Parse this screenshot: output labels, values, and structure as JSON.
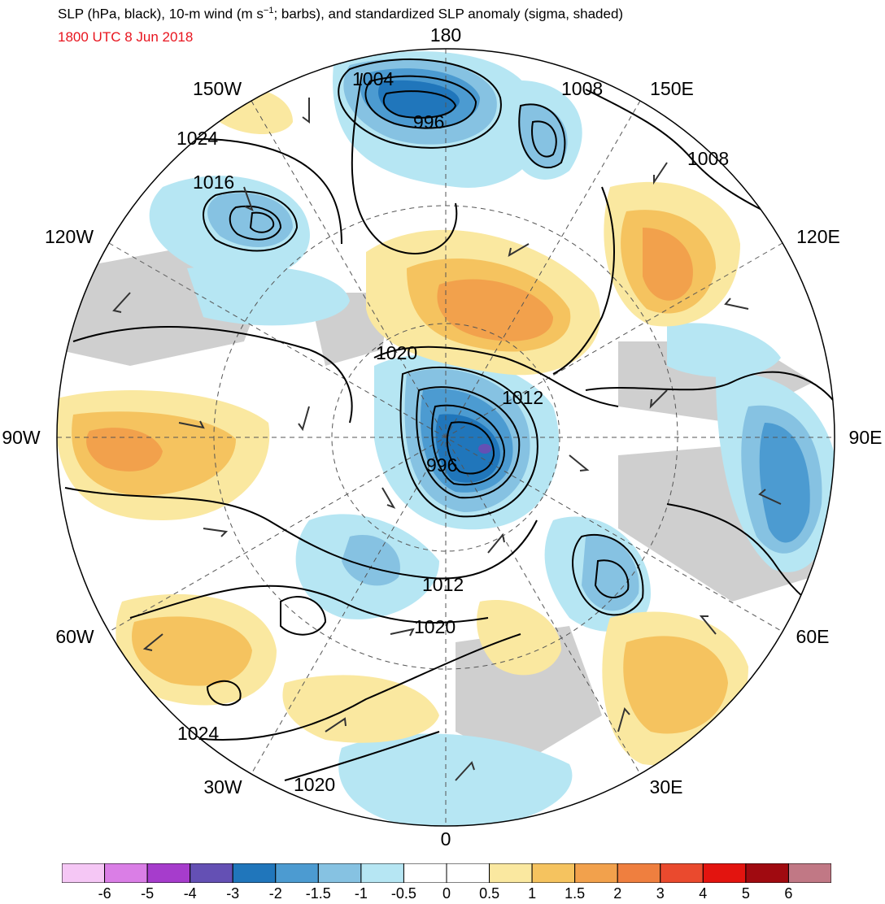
{
  "title": {
    "main": "SLP (hPa, black), 10-m wind (m s",
    "sup": "−1",
    "main_rest": "; barbs), and standardized SLP anomaly (sigma, shaded)",
    "time": "1800 UTC 8 Jun 2018"
  },
  "map": {
    "projection": "north-polar-stereographic",
    "longitude_labels": [
      {
        "text": "180",
        "lon": 180
      },
      {
        "text": "150E",
        "lon": 150
      },
      {
        "text": "120E",
        "lon": 120
      },
      {
        "text": "90E",
        "lon": 90
      },
      {
        "text": "60E",
        "lon": 60
      },
      {
        "text": "30E",
        "lon": 30
      },
      {
        "text": "0",
        "lon": 0
      },
      {
        "text": "30W",
        "lon": -30
      },
      {
        "text": "60W",
        "lon": -60
      },
      {
        "text": "90W",
        "lon": -90
      },
      {
        "text": "120W",
        "lon": -120
      },
      {
        "text": "150W",
        "lon": -150
      }
    ],
    "contour_labels": [
      "1004",
      "1008",
      "996",
      "1024",
      "1016",
      "1008",
      "1020",
      "1012",
      "996",
      "1012",
      "1020",
      "1024",
      "1020"
    ],
    "features": [
      {
        "name": "low",
        "label": "996",
        "anomaly": -3
      },
      {
        "name": "low",
        "label": "996",
        "anomaly": -3
      },
      {
        "name": "high",
        "anomaly": 1.5
      }
    ]
  },
  "colorbar": {
    "labels": [
      "-6",
      "-5",
      "-4",
      "-3",
      "-2",
      "-1.5",
      "-1",
      "-0.5",
      "0",
      "0.5",
      "1",
      "1.5",
      "2",
      "3",
      "4",
      "5",
      "6"
    ],
    "colors": [
      "#f5c7f5",
      "#da7ee6",
      "#a63ccc",
      "#6450b4",
      "#2076bb",
      "#4c9bd1",
      "#86c2e2",
      "#b6e6f3",
      "#ffffff",
      "#ffffff",
      "#fae8a0",
      "#f5c35f",
      "#f2a14c",
      "#ef7f3f",
      "#ea4a2e",
      "#e3140f",
      "#a00a10",
      "#c17885"
    ]
  },
  "colors": {
    "land_neutral": "#d0d0d0",
    "title_time": "#e8141e"
  }
}
